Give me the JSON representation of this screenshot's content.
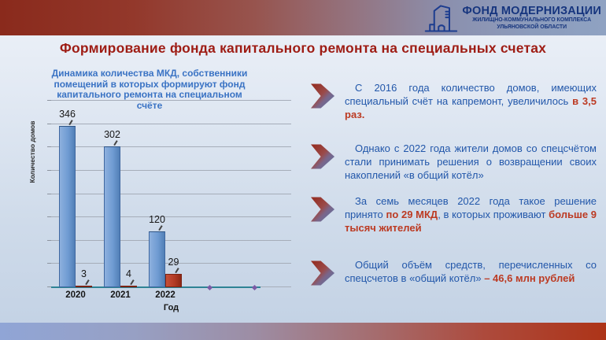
{
  "header": {
    "logo": {
      "icon": "building-icon",
      "title": "ФОНД МОДЕРНИЗАЦИИ",
      "subtitle1": "ЖИЛИЩНО-КОММУНАЛЬНОГО КОМПЛЕКСА",
      "subtitle2": "УЛЬЯНОВСКОЙ ОБЛАСТИ"
    }
  },
  "slide_title": "Формирование фонда капитального ремонта на специальных счетах",
  "chart_data": {
    "type": "bar",
    "title": "Динамика количества МКД, собственники помещений в которых формируют фонд капитального ремонта на специальном счёте",
    "title_lines": [
      "Динамика количества МКД, собственники",
      "помещений в которых формируют фонд",
      "капитального ремонта на специальном",
      "счёте"
    ],
    "xlabel": "Год",
    "ylabel": "Количество домов",
    "categories": [
      "2020",
      "2021",
      "2022",
      "",
      ""
    ],
    "series": [
      {
        "name": "spec-account-houses",
        "color": "#6f9bd2",
        "values": [
          346,
          302,
          120,
          null,
          null
        ]
      },
      {
        "name": "returned-to-common",
        "color": "#b23a24",
        "values": [
          3,
          4,
          29,
          null,
          null
        ]
      }
    ],
    "ylim": [
      0,
      400
    ],
    "grid": true,
    "grid_intervals": 8,
    "legend": false,
    "marker_positions": [
      3,
      4
    ],
    "marker_color": "#7b5aa6",
    "baseline_color": "#2e8395"
  },
  "panels": [
    {
      "segments": [
        {
          "t": "С 2016 года количество домов, имеющих специальный счёт на капремонт, увеличилось ",
          "s": "n"
        },
        {
          "t": "в 3,5 раз.",
          "s": "r"
        }
      ]
    },
    {
      "segments": [
        {
          "t": "Однако с 2022 года жители домов со спецсчётом стали принимать решения о возвращении своих накоплений «в общий котёл»",
          "s": "n"
        }
      ]
    },
    {
      "segments": [
        {
          "t": "За семь месяцев 2022 года такое решение принято ",
          "s": "n"
        },
        {
          "t": "по 29 МКД",
          "s": "r"
        },
        {
          "t": ", в которых проживают ",
          "s": "n"
        },
        {
          "t": "больше 9 тысяч жителей",
          "s": "r"
        }
      ]
    },
    {
      "segments": [
        {
          "t": "Общий объём средств, перечисленных со спецсчетов в «общий котёл» ",
          "s": "n"
        },
        {
          "t": "– 46,6 млн рублей",
          "s": "r"
        }
      ]
    }
  ],
  "colors": {
    "top_band_left": "#8a2a1c",
    "top_band_right": "#8fa2c2",
    "slide_title_red": "#9e1c14",
    "chart_title_blue": "#3a73c4",
    "panel_text_blue": "#2257aa",
    "panel_accent_red": "#bc3a22",
    "bar_blue": "#6f9bd2",
    "bar_red": "#b23a24",
    "baseline_teal": "#2e8395",
    "marker_purple": "#7b5aa6",
    "logo_navy": "#16357e"
  }
}
